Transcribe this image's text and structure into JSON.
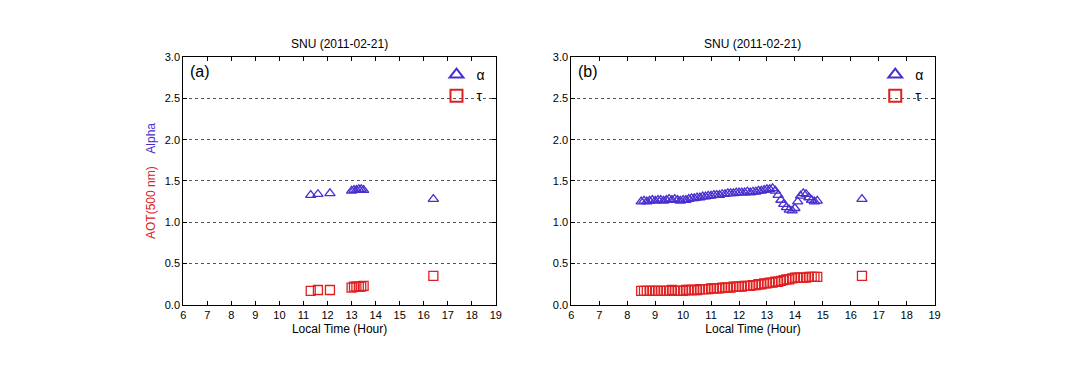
{
  "chart_data": [
    {
      "type": "scatter",
      "title": "SNU (2011-02-21)",
      "annotations": [
        "(a)"
      ],
      "xlabel": "Local Time (Hour)",
      "ylabel": [
        {
          "text": "AOT(500 nm)",
          "color": "#e02020"
        },
        {
          "text": "Alpha",
          "color": "#4b2ecf"
        }
      ],
      "xlim": [
        6,
        19
      ],
      "xticks": [
        6,
        7,
        8,
        9,
        10,
        11,
        12,
        13,
        14,
        15,
        16,
        17,
        18,
        19
      ],
      "ylim": [
        0,
        3
      ],
      "yticks": [
        {
          "value": 0,
          "label": "0.0"
        },
        {
          "value": 0.5,
          "label": "0.5"
        },
        {
          "value": 1,
          "label": "1.0"
        },
        {
          "value": 1.5,
          "label": "1.5"
        },
        {
          "value": 2,
          "label": "2.0"
        },
        {
          "value": 2.5,
          "label": "2.5"
        },
        {
          "value": 3,
          "label": "3.0"
        }
      ],
      "grid": true,
      "legend": "upper right",
      "x": [
        11.3,
        11.6,
        12.1,
        13.0,
        13.1,
        13.2,
        13.3,
        13.4,
        13.5,
        16.4
      ],
      "series": [
        {
          "name": "α",
          "color": "#4b2ecf",
          "marker": "triangle-open",
          "values": [
            1.33,
            1.34,
            1.35,
            1.38,
            1.39,
            1.39,
            1.4,
            1.4,
            1.39,
            1.28
          ]
        },
        {
          "name": "τ",
          "color": "#e02020",
          "marker": "square-open",
          "values": [
            0.17,
            0.18,
            0.18,
            0.21,
            0.22,
            0.22,
            0.22,
            0.22,
            0.23,
            0.35
          ]
        }
      ]
    },
    {
      "type": "scatter",
      "title": "SNU (2011-02-21)",
      "annotations": [
        "(b)"
      ],
      "xlabel": "Local Time (Hour)",
      "xlim": [
        6,
        19
      ],
      "xticks": [
        6,
        7,
        8,
        9,
        10,
        11,
        12,
        13,
        14,
        15,
        16,
        17,
        18,
        19
      ],
      "ylim": [
        0,
        3
      ],
      "yticks": [
        {
          "value": 0,
          "label": "0.0"
        },
        {
          "value": 0.5,
          "label": "0.5"
        },
        {
          "value": 1,
          "label": "1.0"
        },
        {
          "value": 1.5,
          "label": "1.5"
        },
        {
          "value": 2,
          "label": "2.0"
        },
        {
          "value": 2.5,
          "label": "2.5"
        },
        {
          "value": 3,
          "label": "3.0"
        }
      ],
      "grid": true,
      "legend": "upper right",
      "x": [
        8.5,
        8.6,
        8.7,
        8.8,
        8.9,
        9.0,
        9.1,
        9.2,
        9.3,
        9.4,
        9.5,
        9.6,
        9.7,
        9.8,
        9.9,
        10.0,
        10.1,
        10.2,
        10.3,
        10.4,
        10.5,
        10.6,
        10.7,
        10.8,
        10.9,
        11.0,
        11.1,
        11.2,
        11.3,
        11.4,
        11.5,
        11.6,
        11.7,
        11.8,
        11.9,
        12.0,
        12.1,
        12.2,
        12.3,
        12.4,
        12.5,
        12.6,
        12.7,
        12.8,
        12.9,
        13.0,
        13.1,
        13.2,
        13.3,
        13.4,
        13.5,
        13.6,
        13.7,
        13.8,
        13.9,
        14.0,
        14.1,
        14.2,
        14.3,
        14.4,
        14.5,
        14.6,
        14.7,
        14.8,
        16.4
      ],
      "series": [
        {
          "name": "α",
          "color": "#4b2ecf",
          "marker": "triangle-open",
          "values": [
            1.25,
            1.26,
            1.25,
            1.26,
            1.27,
            1.26,
            1.27,
            1.27,
            1.26,
            1.27,
            1.28,
            1.27,
            1.28,
            1.27,
            1.26,
            1.27,
            1.27,
            1.28,
            1.29,
            1.29,
            1.3,
            1.3,
            1.31,
            1.31,
            1.32,
            1.32,
            1.33,
            1.33,
            1.33,
            1.34,
            1.34,
            1.35,
            1.35,
            1.35,
            1.36,
            1.36,
            1.36,
            1.36,
            1.37,
            1.36,
            1.37,
            1.37,
            1.38,
            1.38,
            1.39,
            1.4,
            1.4,
            1.41,
            1.38,
            1.33,
            1.27,
            1.22,
            1.18,
            1.15,
            1.14,
            1.17,
            1.25,
            1.32,
            1.35,
            1.34,
            1.3,
            1.27,
            1.25,
            1.26,
            1.28
          ]
        },
        {
          "name": "τ",
          "color": "#e02020",
          "marker": "square-open",
          "values": [
            0.17,
            0.17,
            0.17,
            0.17,
            0.17,
            0.17,
            0.17,
            0.17,
            0.17,
            0.17,
            0.17,
            0.18,
            0.17,
            0.17,
            0.17,
            0.17,
            0.18,
            0.18,
            0.18,
            0.18,
            0.18,
            0.19,
            0.19,
            0.19,
            0.19,
            0.2,
            0.2,
            0.2,
            0.2,
            0.21,
            0.21,
            0.21,
            0.21,
            0.22,
            0.22,
            0.22,
            0.22,
            0.23,
            0.23,
            0.23,
            0.24,
            0.24,
            0.25,
            0.25,
            0.26,
            0.26,
            0.27,
            0.27,
            0.28,
            0.28,
            0.29,
            0.3,
            0.31,
            0.31,
            0.32,
            0.33,
            0.33,
            0.33,
            0.33,
            0.33,
            0.34,
            0.34,
            0.34,
            0.34,
            0.35
          ]
        }
      ]
    }
  ]
}
